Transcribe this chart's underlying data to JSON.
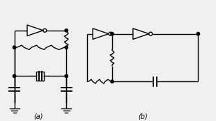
{
  "fig_width": 3.1,
  "fig_height": 1.74,
  "dpi": 100,
  "bg_color": "#f0f0f0",
  "line_color": "black",
  "line_width": 1.0,
  "label_a": "(a)",
  "label_b": "(b)"
}
